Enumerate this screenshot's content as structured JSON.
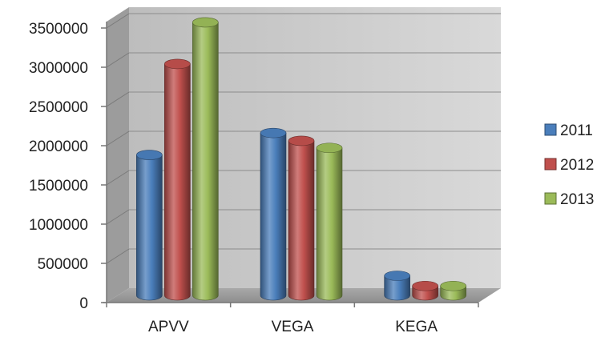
{
  "chart_data": {
    "type": "bar",
    "style": "3d-cylinder",
    "categories": [
      "APVV",
      "VEGA",
      "KEGA"
    ],
    "series": [
      {
        "name": "2011",
        "values": [
          1790000,
          2070000,
          250000
        ],
        "color": "#4a7ebb"
      },
      {
        "name": "2012",
        "values": [
          2950000,
          1970000,
          120000
        ],
        "color": "#c0504d"
      },
      {
        "name": "2013",
        "values": [
          3480000,
          1880000,
          120000
        ],
        "color": "#9bbb59"
      }
    ],
    "yticks": [
      0,
      500000,
      1000000,
      1500000,
      2000000,
      2500000,
      3000000,
      3500000
    ],
    "ylim": [
      0,
      3500000
    ],
    "grid": true,
    "legend": "right",
    "title": "",
    "xlabel": "",
    "ylabel": ""
  }
}
